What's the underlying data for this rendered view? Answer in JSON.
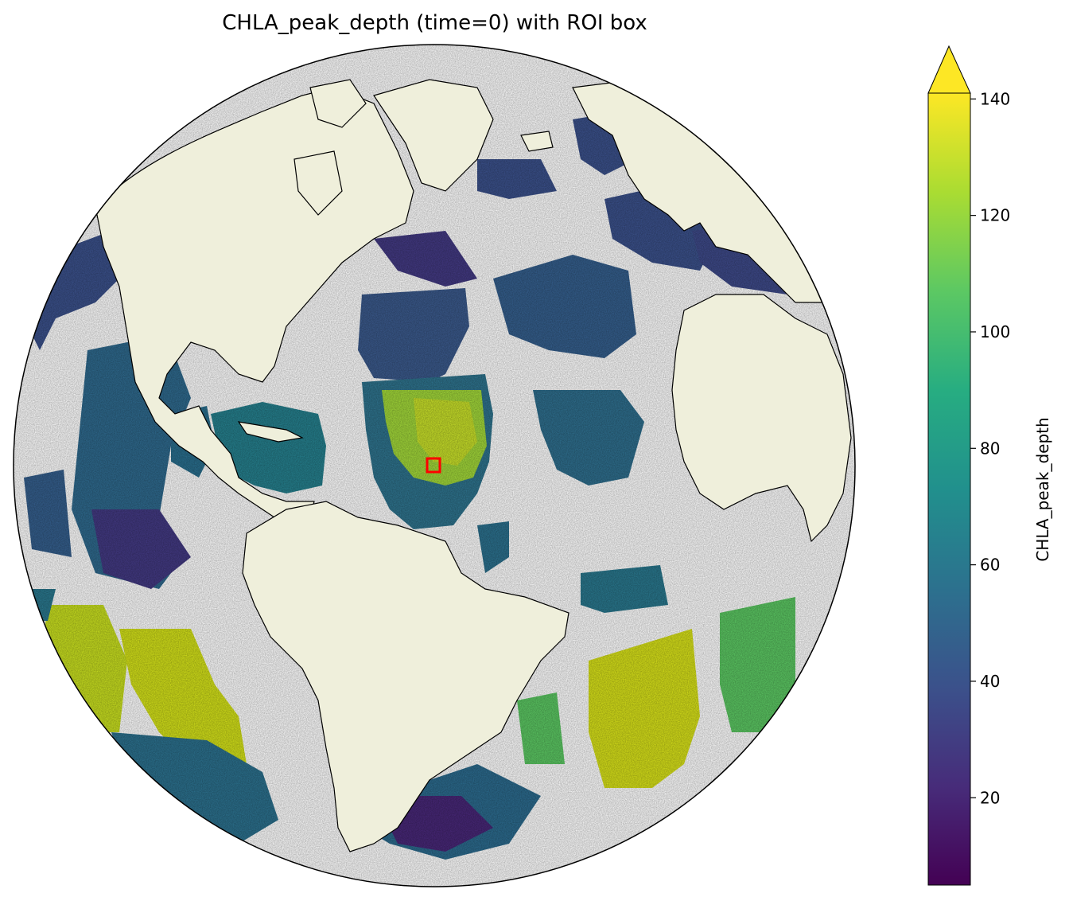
{
  "title": "CHLA_peak_depth (time=0) with ROI box",
  "colorbar": {
    "label": "CHLA_peak_depth",
    "ticks": [
      20,
      40,
      60,
      80,
      100,
      120,
      140
    ],
    "vmin": 5,
    "vmax": 141,
    "extend": "max",
    "colormap": "viridis",
    "colors": [
      "#440154",
      "#472c7a",
      "#3b518b",
      "#2c718e",
      "#21908d",
      "#27ad81",
      "#5cc863",
      "#aadc32",
      "#fde725"
    ]
  },
  "map": {
    "projection": "orthographic",
    "land_color": "#efefdb",
    "ocean_missing_color": "#ffffff",
    "coastline_color": "#000000",
    "roi_box_color": "#ff0000"
  }
}
